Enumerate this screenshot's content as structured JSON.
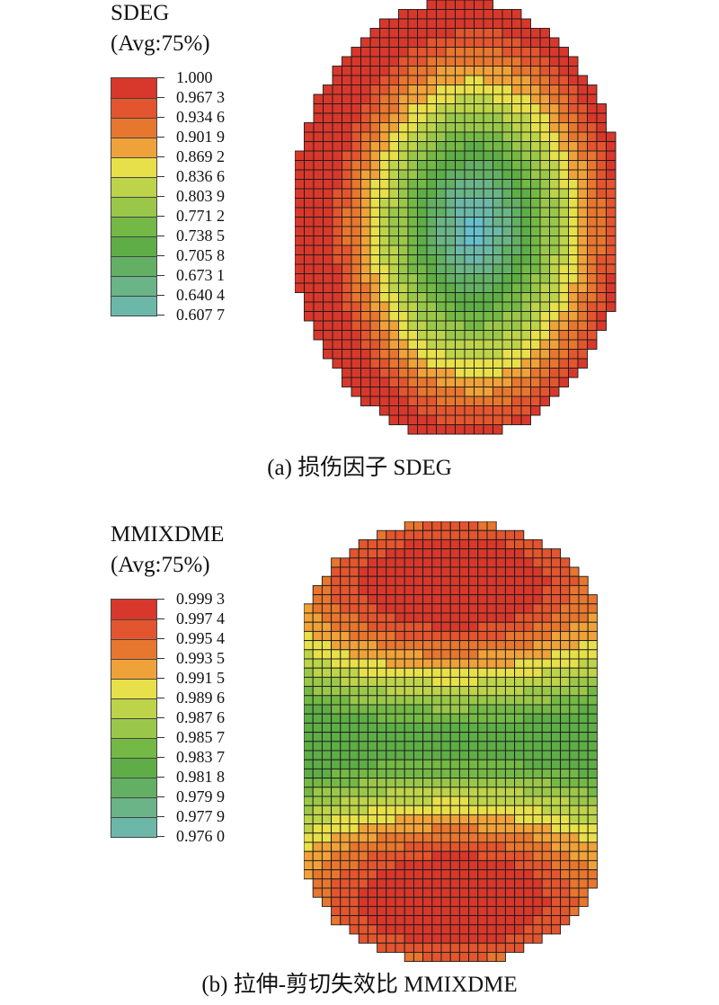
{
  "panels": [
    {
      "variable": "SDEG",
      "averaging": "(Avg:75%)",
      "caption": "(a) 损伤因子 SDEG",
      "legend_values": [
        "1.000",
        "0.967 3",
        "0.934 6",
        "0.901 9",
        "0.869 2",
        "0.836 6",
        "0.803 9",
        "0.771 2",
        "0.738 5",
        "0.705 8",
        "0.673 1",
        "0.640 4",
        "0.607 7"
      ],
      "legend_colors": [
        "#d7382b",
        "#e2552e",
        "#e7762f",
        "#efa23a",
        "#e8e04a",
        "#bcd34a",
        "#9ac749",
        "#74b845",
        "#5ead47",
        "#63b064",
        "#6ab487",
        "#6cb8a8",
        "#66bfcc"
      ],
      "field": "damage field: minimum at center, increasing toward edges"
    },
    {
      "variable": "MMIXDME",
      "averaging": "(Avg:75%)",
      "caption": "(b) 拉伸-剪切失效比 MMIXDME",
      "legend_values": [
        "0.999 3",
        "0.997 4",
        "0.995 4",
        "0.993 5",
        "0.991 5",
        "0.989 6",
        "0.987 6",
        "0.985 7",
        "0.983 7",
        "0.981 8",
        "0.979 9",
        "0.977 9",
        "0.976 0"
      ],
      "legend_colors": [
        "#d7382b",
        "#e2552e",
        "#e7762f",
        "#efa23a",
        "#e8e04a",
        "#bcd34a",
        "#9ac749",
        "#74b845",
        "#5ead47",
        "#63b064",
        "#6ab487",
        "#6cb8a8",
        "#66bfcc"
      ],
      "field": "mixed-mode ratio: maxima at top and bottom caps, green central band"
    }
  ]
}
